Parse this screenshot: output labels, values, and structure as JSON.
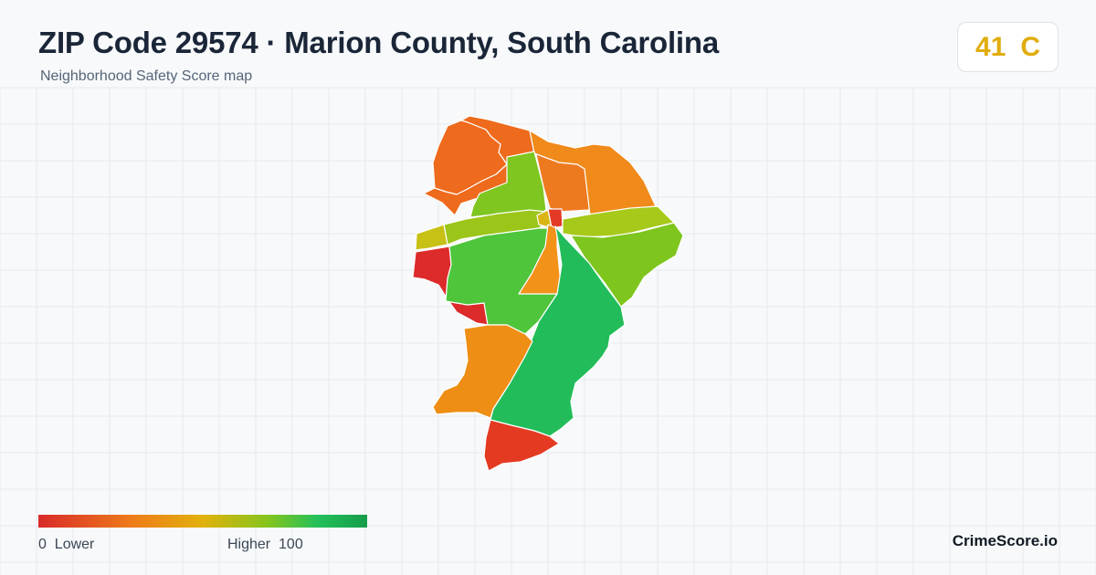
{
  "header": {
    "title": "ZIP Code 29574 · Marion County, South Carolina",
    "subtitle": "Neighborhood Safety Score map"
  },
  "score": {
    "value": "41",
    "grade": "C",
    "color": "#e0ad0d"
  },
  "legend": {
    "min": "0",
    "min_label": "Lower",
    "max_label": "Higher",
    "max": "100"
  },
  "brand": "CrimeScore.io",
  "map_regions": [
    {
      "name": "northwest",
      "color": "#ee6a1c"
    },
    {
      "name": "north-notch",
      "color": "#ee6a1c"
    },
    {
      "name": "north-central",
      "color": "#ee7a20"
    },
    {
      "name": "northeast",
      "color": "#f08a1a"
    },
    {
      "name": "north-green",
      "color": "#7fc621"
    },
    {
      "name": "west-strip",
      "color": "#9cc51a"
    },
    {
      "name": "west-tab",
      "color": "#c7c015"
    },
    {
      "name": "town-center-red",
      "color": "#e23a24"
    },
    {
      "name": "town-center-gold",
      "color": "#d8b512"
    },
    {
      "name": "east-strip",
      "color": "#a6c91a"
    },
    {
      "name": "east",
      "color": "#7ec51e"
    },
    {
      "name": "west-red",
      "color": "#dd2a2a"
    },
    {
      "name": "central-green",
      "color": "#4fc53c"
    },
    {
      "name": "central-orange",
      "color": "#f29218"
    },
    {
      "name": "southeast-green",
      "color": "#22bd5a"
    },
    {
      "name": "southwest-orange",
      "color": "#ef8e14"
    },
    {
      "name": "south-red",
      "color": "#e43a22"
    }
  ]
}
